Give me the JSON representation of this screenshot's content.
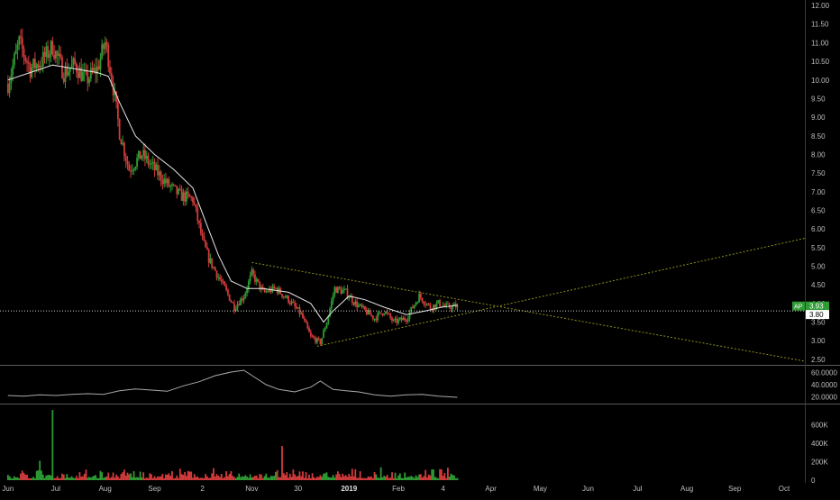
{
  "chart_data": {
    "type": "candlestick",
    "colors": {
      "background": "#000000",
      "up": "#2e9b34",
      "down": "#d23b3b",
      "ma_line": "#e6e6e6",
      "trendline": "#8f8f1f",
      "last_price_badge": "#2e9b34",
      "current_price_badge": "#ffffff"
    },
    "x_axis": {
      "tick_labels": [
        "Jun",
        "Jul",
        "Aug",
        "Sep",
        "2",
        "Nov",
        "30",
        "2019",
        "Feb",
        "4",
        "Apr",
        "May",
        "Jun",
        "Jul",
        "Aug",
        "Sep",
        "Oct"
      ],
      "tick_days": [
        0,
        30,
        61,
        92,
        122,
        153,
        182,
        214,
        245,
        273,
        303,
        334,
        364,
        395,
        426,
        456,
        487
      ],
      "range_days": [
        -5,
        500
      ]
    },
    "price_axis": {
      "ticks": [
        "12.00",
        "11.50",
        "11.00",
        "10.50",
        "10.00",
        "9.50",
        "9.00",
        "8.50",
        "8.00",
        "7.50",
        "7.00",
        "6.50",
        "6.00",
        "5.50",
        "5.00",
        "4.50",
        "4.00",
        "3.50",
        "3.00",
        "2.50"
      ],
      "ylim": [
        2.4,
        12.05
      ]
    },
    "badges": {
      "last_label": "AP",
      "last_value": "3.93",
      "current_value": "3.80"
    },
    "price_series": {
      "days": [
        0,
        7,
        14,
        21,
        28,
        35,
        42,
        49,
        56,
        61,
        63,
        66,
        70,
        76,
        84,
        92,
        100,
        108,
        116,
        122,
        126,
        131,
        136,
        142,
        148,
        153,
        160,
        168,
        176,
        184,
        190,
        196,
        200,
        205,
        212,
        218,
        224,
        230,
        236,
        242,
        250,
        258,
        265,
        270,
        276,
        282
      ],
      "close": [
        9.9,
        11.0,
        10.3,
        10.5,
        10.9,
        10.2,
        10.4,
        10.0,
        10.3,
        11.0,
        10.6,
        9.8,
        8.6,
        7.6,
        8.0,
        7.6,
        7.2,
        6.9,
        6.8,
        5.7,
        5.2,
        4.8,
        4.4,
        3.9,
        4.2,
        4.8,
        4.3,
        4.4,
        4.1,
        3.7,
        3.1,
        2.95,
        3.5,
        4.4,
        4.3,
        4.0,
        3.8,
        3.6,
        3.8,
        3.5,
        3.6,
        4.2,
        3.9,
        4.0,
        3.9,
        3.93
      ]
    },
    "ma_series": {
      "days": [
        0,
        14,
        28,
        42,
        56,
        63,
        70,
        80,
        92,
        104,
        116,
        124,
        132,
        140,
        150,
        160,
        176,
        190,
        198,
        204,
        214,
        224,
        236,
        250,
        262,
        272,
        282
      ],
      "values": [
        10.0,
        10.2,
        10.4,
        10.3,
        10.2,
        10.1,
        9.4,
        8.5,
        8.0,
        7.6,
        7.1,
        6.2,
        5.3,
        4.6,
        4.4,
        4.4,
        4.3,
        4.0,
        3.5,
        3.8,
        4.2,
        4.1,
        3.9,
        3.7,
        3.8,
        3.9,
        3.95
      ]
    },
    "trendlines": [
      {
        "from": [
          153,
          5.1
        ],
        "to": [
          500,
          2.45
        ]
      },
      {
        "from": [
          194,
          2.85
        ],
        "to": [
          500,
          5.75
        ]
      }
    ],
    "horizontal_line": 3.8,
    "oscillator": {
      "ticks": [
        "60.0000",
        "40.0000",
        "20.0000"
      ],
      "ylim": [
        10,
        70
      ],
      "days": [
        0,
        10,
        20,
        30,
        40,
        50,
        60,
        70,
        80,
        90,
        100,
        110,
        120,
        130,
        140,
        148,
        155,
        162,
        170,
        180,
        190,
        196,
        204,
        212,
        220,
        230,
        240,
        250,
        260,
        270,
        282
      ],
      "values": [
        22,
        21,
        23,
        22,
        24,
        25,
        24,
        30,
        33,
        31,
        29,
        38,
        45,
        55,
        61,
        64,
        52,
        40,
        32,
        28,
        36,
        46,
        32,
        30,
        28,
        23,
        21,
        23,
        24,
        21,
        19
      ]
    },
    "volume": {
      "ticks": [
        "600K",
        "400K",
        "200K",
        "0"
      ],
      "ylim": [
        0,
        800000
      ],
      "spike_days": [
        {
          "day": 28,
          "value": 760000
        },
        {
          "day": 172,
          "value": 370000
        },
        {
          "day": 20,
          "value": 210000
        }
      ],
      "typical_range": [
        20000,
        140000
      ]
    }
  }
}
